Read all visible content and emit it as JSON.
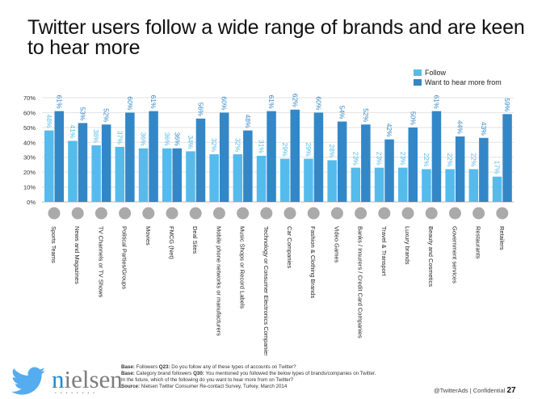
{
  "title": "Twitter users follow a wide range of brands and are keen to hear more",
  "colors": {
    "follow": "#55bbec",
    "hear_more": "#3387c7",
    "icon": "#aaaaaa"
  },
  "chart_data": {
    "type": "bar",
    "categories": [
      "Sports Teams",
      "News and Magazines",
      "TV Channels or TV Shows",
      "Political Parties/Groups",
      "Movies",
      "FMCG (Net)",
      "Deal Sites",
      "Mobile phone networks or manufacturers",
      "Music Shops or Record Labels",
      "Technology or Consumer Electronics Companies",
      "Car Companies",
      "Fashion & Clothing Brands",
      "Video Games",
      "Banks / Insurers / Credit Card Companies",
      "Travel & Transport",
      "Luxury brands",
      "Beauty and Cosmetics",
      "Government services",
      "Restaurants",
      "Retailers"
    ],
    "icons": [
      "trophy-icon",
      "newspaper-icon",
      "tv-icon",
      "info-icon",
      "film-reel-icon",
      "shopping-cart-icon",
      "piggy-bank-icon",
      "mobile-phone-icon",
      "headphones-icon",
      "power-button-icon",
      "car-icon",
      "hanger-icon",
      "game-console-icon",
      "bank-icon",
      "traffic-cone-icon",
      "handbag-icon",
      "lipstick-icon",
      "official-icon",
      "fork-knife-icon",
      "shopping-bag-icon"
    ],
    "series": [
      {
        "name": "Follow",
        "values": [
          48,
          41,
          38,
          37,
          36,
          36,
          34,
          32,
          32,
          31,
          29,
          29,
          28,
          23,
          23,
          23,
          22,
          22,
          22,
          17
        ]
      },
      {
        "name": "Want to hear more from",
        "values": [
          61,
          53,
          52,
          60,
          61,
          36,
          56,
          60,
          48,
          61,
          62,
          60,
          54,
          52,
          42,
          50,
          61,
          44,
          43,
          59
        ]
      }
    ],
    "data_labels": [
      [
        "48%",
        "41%",
        "38%",
        "37%",
        "36%",
        "36%",
        "34%",
        "32%",
        "32%",
        "31%",
        "29%",
        "29%",
        "28%",
        "23%",
        "23%",
        "23%",
        "22%",
        "22%",
        "22%",
        "17%"
      ],
      [
        "61%",
        "53%",
        "52%",
        "60%",
        "61%",
        "36%",
        "56%",
        "60%",
        "48%",
        "61%",
        "62%",
        "60%",
        "54%",
        "52%",
        "42%",
        "50%",
        "61%",
        "44%",
        "43%",
        "59%"
      ]
    ],
    "yticks": [
      "0%",
      "10%",
      "20%",
      "30%",
      "40%",
      "50%",
      "60%",
      "70%"
    ],
    "ylim": [
      0,
      70
    ],
    "grid": true,
    "legend": "top-right"
  },
  "footer": {
    "base1_label": "Base:",
    "base1_text": "Followers ",
    "base1_q": "Q23:",
    "base1_rest": " Do you follow any of these types of accounts on Twitter?",
    "base2_label": "Base:",
    "base2_text": "Category brand followers ",
    "base2_q": "Q30:",
    "base2_rest": "  You mentioned you followed the below types of brands/companies on Twitter.",
    "base2_line2": "In the future, which of the following do you want to hear more from on Twitter?",
    "source_label": "Source:",
    "source_text": " Nielsen Twitter Consumer Re-contact Survey, Turkey, March 2014",
    "brand_n": "n",
    "brand_rest": "ielsen",
    "brand_dots": "••••••••",
    "handle": "@TwitterAds | Confidential ",
    "page": "27"
  }
}
